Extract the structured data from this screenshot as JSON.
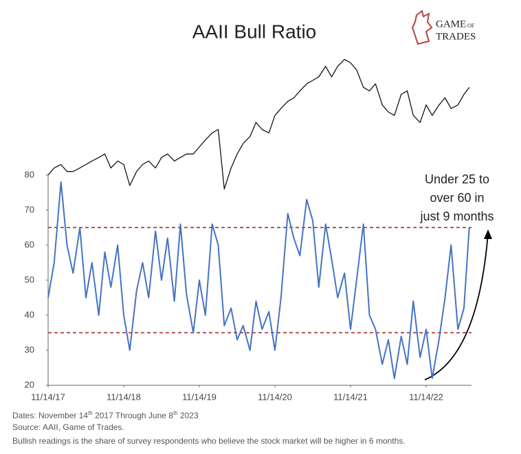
{
  "chart_data": {
    "type": "line",
    "title": "AAII Bull Ratio",
    "x": [
      2017.87,
      2017.95,
      2018.04,
      2018.12,
      2018.2,
      2018.29,
      2018.37,
      2018.45,
      2018.54,
      2018.62,
      2018.7,
      2018.79,
      2018.87,
      2018.95,
      2019.04,
      2019.12,
      2019.2,
      2019.29,
      2019.37,
      2019.45,
      2019.54,
      2019.62,
      2019.7,
      2019.79,
      2019.87,
      2019.95,
      2020.04,
      2020.12,
      2020.2,
      2020.29,
      2020.37,
      2020.45,
      2020.54,
      2020.62,
      2020.7,
      2020.79,
      2020.87,
      2020.95,
      2021.04,
      2021.12,
      2021.2,
      2021.29,
      2021.37,
      2021.45,
      2021.54,
      2021.62,
      2021.7,
      2021.79,
      2021.87,
      2021.95,
      2022.04,
      2022.12,
      2022.2,
      2022.29,
      2022.37,
      2022.45,
      2022.54,
      2022.62,
      2022.7,
      2022.79,
      2022.87,
      2022.95,
      2023.04,
      2023.12,
      2023.2,
      2023.29,
      2023.37,
      2023.44
    ],
    "series": [
      {
        "color": "#111111",
        "values": [
          80,
          82,
          83,
          81,
          81,
          82,
          83,
          84,
          85,
          86,
          82,
          84,
          83,
          77,
          81,
          83,
          84,
          82,
          85,
          86,
          84,
          85,
          86,
          86,
          88,
          90,
          92,
          93,
          76,
          82,
          86,
          89,
          91,
          95,
          93,
          92,
          97,
          99,
          101,
          102,
          104,
          106,
          107,
          108,
          111,
          108,
          111,
          113,
          112,
          110,
          105,
          104,
          106,
          100,
          98,
          97,
          103,
          104,
          97,
          95,
          100,
          97,
          100,
          102,
          99,
          100,
          103,
          105
        ]
      },
      {
        "color": "#4472c4",
        "values": [
          45,
          55,
          78,
          60,
          52,
          65,
          45,
          55,
          40,
          58,
          48,
          60,
          40,
          30,
          47,
          55,
          45,
          64,
          50,
          62,
          44,
          66,
          46,
          35,
          50,
          40,
          66,
          60,
          37,
          42,
          33,
          37,
          30,
          44,
          36,
          41,
          30,
          45,
          69,
          62,
          57,
          73,
          67,
          48,
          66,
          56,
          45,
          52,
          36,
          50,
          66,
          40,
          36,
          26,
          33,
          22,
          34,
          26,
          44,
          28,
          36,
          22,
          33,
          45,
          60,
          36,
          42,
          65
        ]
      }
    ],
    "xlim": [
      2017.87,
      2023.47
    ],
    "xticks": [
      {
        "value": 2017.87,
        "label": "11/14/17"
      },
      {
        "value": 2018.87,
        "label": "11/14/18"
      },
      {
        "value": 2019.87,
        "label": "11/14/19"
      },
      {
        "value": 2020.87,
        "label": "11/14/20"
      },
      {
        "value": 2021.87,
        "label": "11/14/21"
      },
      {
        "value": 2022.87,
        "label": "11/14/22"
      }
    ],
    "ylim": [
      20,
      117
    ],
    "yticks": [
      20,
      30,
      40,
      50,
      60,
      70,
      80
    ],
    "reference_lines": [
      65,
      35
    ],
    "reference_color": "#a8282b",
    "annotation": [
      "Under 25 to",
      "over 60 in",
      "just 9 months"
    ]
  },
  "logo": {
    "line1": "Game",
    "small": "of",
    "line2": "Trades"
  },
  "notes": {
    "dates": [
      "Dates: November 14",
      "th",
      " 2017 Through June 8",
      "th",
      " 2023"
    ],
    "source": "Source: AAII, Game of Trades.",
    "definition": "Bullish readings is the share of survey respondents who believe the stock market will be higher in 6 months."
  }
}
